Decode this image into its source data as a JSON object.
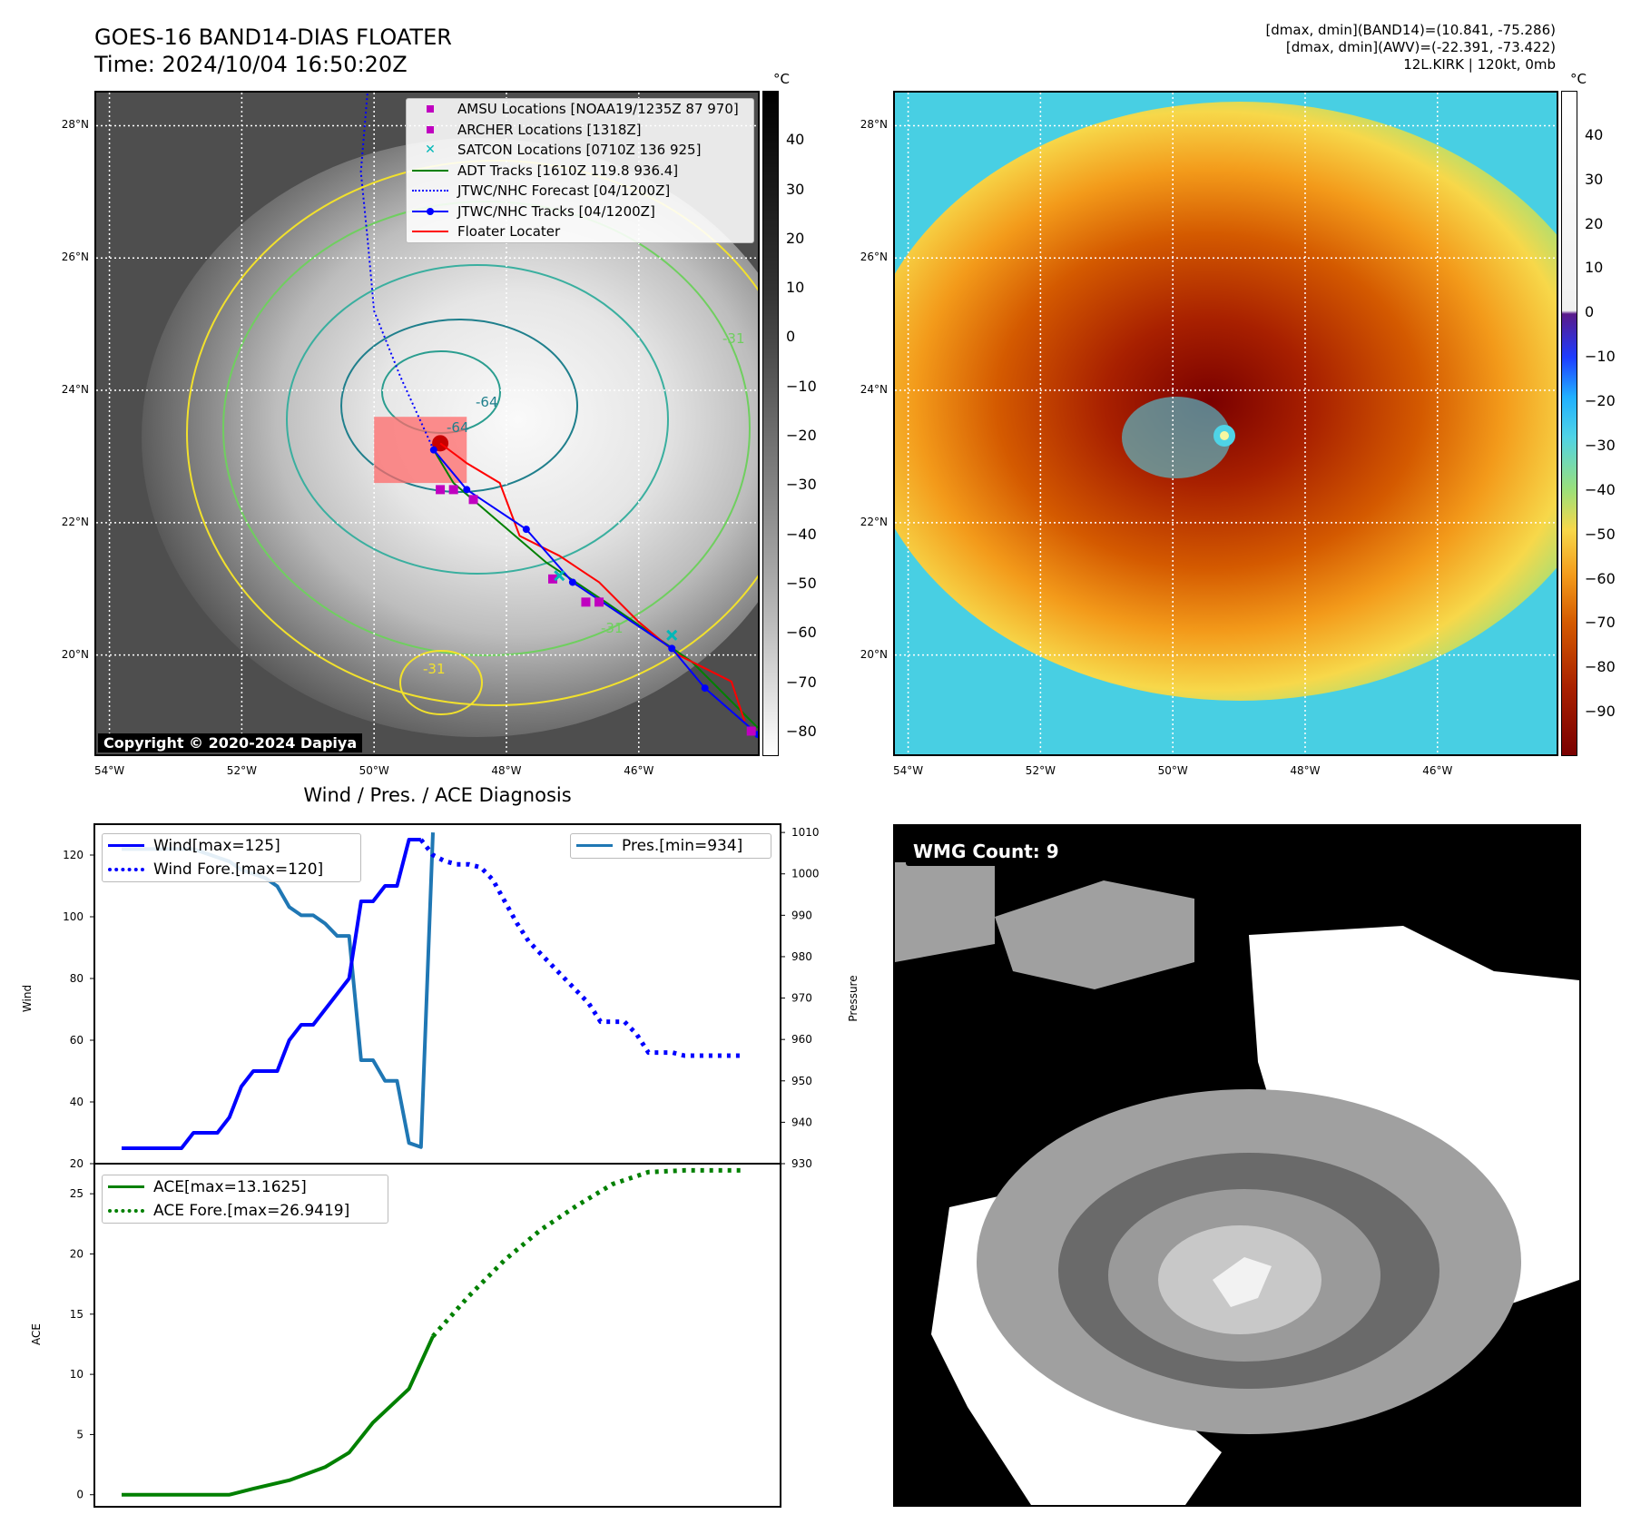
{
  "header": {
    "title": "GOES-16 BAND14-DIAS FLOATER",
    "time": "Time: 2024/10/04 16:50:20Z",
    "info_line1": "[dmax, dmin](BAND14)=(10.841, -75.286)",
    "info_line2": "[dmax, dmin](AWV)=(-22.391, -73.422)",
    "info_line3": "12L.KIRK | 120kt, 0mb"
  },
  "map": {
    "lat_labels": [
      "28°N",
      "26°N",
      "24°N",
      "22°N",
      "20°N"
    ],
    "lat_values": [
      28,
      26,
      24,
      22,
      20
    ],
    "lon_labels": [
      "54°W",
      "52°W",
      "50°W",
      "48°W",
      "46°W"
    ],
    "lon_values": [
      -54,
      -52,
      -50,
      -48,
      -46
    ],
    "extent": {
      "lon_min": -54.2,
      "lon_max": -44.2,
      "lat_min": 18.5,
      "lat_max": 28.5
    },
    "copyright": "Copyright © 2020-2024 Dapiya",
    "contour_labels": [
      "-64",
      "-64",
      "-31",
      "-31",
      "-31"
    ],
    "legend": [
      {
        "label": "AMSU Locations [NOAA19/1235Z 87 970]",
        "color": "#c000c0",
        "style": "square"
      },
      {
        "label": "ARCHER Locations [1318Z]",
        "color": "#c000c0",
        "style": "square"
      },
      {
        "label": "SATCON Locations [0710Z 136 925]",
        "color": "#00b8b8",
        "style": "x"
      },
      {
        "label": "ADT Tracks [1610Z 119.8 936.4]",
        "color": "#008000",
        "style": "line"
      },
      {
        "label": "JTWC/NHC Forecast [04/1200Z]",
        "color": "#0000ff",
        "style": "dotted"
      },
      {
        "label": "JTWC/NHC Tracks [04/1200Z]",
        "color": "#0000ff",
        "style": "line-dot"
      },
      {
        "label": "Floater Locater",
        "color": "#ff0000",
        "style": "line"
      }
    ],
    "jtwc_track": [
      [
        -44.2,
        18.8
      ],
      [
        -45.0,
        19.5
      ],
      [
        -45.5,
        20.1
      ],
      [
        -47.0,
        21.1
      ],
      [
        -47.7,
        21.9
      ],
      [
        -48.6,
        22.5
      ],
      [
        -49.1,
        23.1
      ]
    ],
    "jtwc_forecast": [
      [
        -49.1,
        23.1
      ],
      [
        -49.6,
        24.2
      ],
      [
        -50.0,
        25.2
      ],
      [
        -50.1,
        26.3
      ],
      [
        -50.2,
        27.3
      ],
      [
        -50.1,
        28.5
      ]
    ],
    "adt_track": [
      [
        -44.2,
        18.9
      ],
      [
        -45.2,
        19.9
      ],
      [
        -46.5,
        20.8
      ],
      [
        -47.4,
        21.4
      ],
      [
        -48.1,
        22.0
      ],
      [
        -48.8,
        22.6
      ],
      [
        -49.1,
        23.1
      ]
    ],
    "floater_track": [
      [
        -44.4,
        19.0
      ],
      [
        -44.6,
        19.6
      ],
      [
        -45.4,
        20.0
      ],
      [
        -46.0,
        20.5
      ],
      [
        -46.6,
        21.1
      ],
      [
        -47.2,
        21.5
      ],
      [
        -47.8,
        21.8
      ],
      [
        -48.1,
        22.6
      ],
      [
        -48.6,
        22.9
      ],
      [
        -49.0,
        23.2
      ]
    ],
    "amsu_points": [
      [
        -49.0,
        22.5
      ],
      [
        -48.8,
        22.5
      ],
      [
        -48.5,
        22.35
      ],
      [
        -46.8,
        20.8
      ],
      [
        -46.6,
        20.8
      ],
      [
        -47.3,
        21.15
      ],
      [
        -44.3,
        18.85
      ]
    ],
    "satcon_points": [
      [
        -47.2,
        21.2
      ],
      [
        -45.5,
        20.3
      ]
    ],
    "floater_box": {
      "lon_min": -50.0,
      "lon_max": -48.6,
      "lat_min": 22.6,
      "lat_max": 23.6
    },
    "colorbar_left": {
      "unit": "°C",
      "ticks": [
        "40",
        "30",
        "20",
        "10",
        "0",
        "−10",
        "−20",
        "−30",
        "−40",
        "−50",
        "−60",
        "−70",
        "−80"
      ],
      "tick_values": [
        40,
        30,
        20,
        10,
        0,
        -10,
        -20,
        -30,
        -40,
        -50,
        -60,
        -70,
        -80
      ],
      "range": [
        -85,
        50
      ]
    },
    "colorbar_right": {
      "unit": "°C",
      "ticks": [
        "40",
        "30",
        "20",
        "10",
        "0",
        "−10",
        "−20",
        "−30",
        "−40",
        "−50",
        "−60",
        "−70",
        "−80",
        "−90"
      ],
      "tick_values": [
        40,
        30,
        20,
        10,
        0,
        -10,
        -20,
        -30,
        -40,
        -50,
        -60,
        -70,
        -80,
        -90
      ],
      "range": [
        -100,
        50
      ]
    }
  },
  "diagnosis": {
    "title": "Wind / Pres. / ACE Diagnosis",
    "wind_ylabel": "Wind",
    "pres_ylabel": "Pressure",
    "ace_ylabel": "ACE",
    "legend_wind": "Wind[max=125]",
    "legend_wind_fore": "Wind Fore.[max=120]",
    "legend_pres": "Pres.[min=934]",
    "legend_ace": "ACE[max=13.1625]",
    "legend_ace_fore": "ACE Fore.[max=26.9419]",
    "colors": {
      "wind": "#0000ff",
      "pres": "#1f77b4",
      "ace": "#008000"
    }
  },
  "wmg": {
    "label": "WMG Count: 9"
  },
  "chart_data": [
    {
      "type": "line",
      "title": "Wind / Pres. / ACE Diagnosis",
      "ylabel": "Wind",
      "ylim": [
        20,
        130
      ],
      "yticks": [
        20,
        40,
        60,
        80,
        100,
        120
      ],
      "secondary_ylabel": "Pressure",
      "secondary_ylim": [
        930,
        1012
      ],
      "secondary_yticks": [
        930,
        940,
        950,
        960,
        970,
        980,
        990,
        1000,
        1010
      ],
      "series": [
        {
          "name": "Wind[max=125]",
          "axis": "wind",
          "x": [
            0,
            1,
            2,
            3,
            4,
            5,
            6,
            7,
            8,
            9,
            10,
            11,
            12,
            13,
            14,
            15,
            16,
            17,
            18,
            19,
            20,
            21,
            22,
            23,
            24,
            25
          ],
          "values": [
            25,
            25,
            25,
            25,
            25,
            25,
            30,
            30,
            30,
            35,
            45,
            50,
            50,
            50,
            60,
            65,
            65,
            70,
            75,
            80,
            105,
            105,
            110,
            110,
            125,
            125
          ]
        },
        {
          "name": "Wind Fore.[max=120]",
          "axis": "wind",
          "style": "dotted",
          "x": [
            25,
            26,
            27,
            28,
            29,
            30,
            31,
            32,
            33,
            34,
            35,
            36,
            37,
            38,
            39,
            40,
            41,
            42,
            43,
            44,
            45,
            46,
            47,
            48,
            49,
            50,
            51,
            52
          ],
          "values": [
            125,
            120,
            118,
            117,
            117,
            116,
            112,
            105,
            98,
            92,
            88,
            84,
            80,
            76,
            72,
            66,
            66,
            66,
            62,
            56,
            56,
            56,
            55,
            55,
            55,
            55,
            55,
            55
          ]
        },
        {
          "name": "Pres.[min=934]",
          "axis": "pressure",
          "x": [
            0,
            1,
            2,
            3,
            4,
            5,
            6,
            7,
            8,
            9,
            10,
            11,
            12,
            13,
            14,
            15,
            16,
            17,
            18,
            19,
            20,
            21,
            22,
            23,
            24,
            25,
            26
          ],
          "values": [
            1006,
            1006,
            1006,
            1006,
            1006,
            1006,
            1006,
            1005,
            1004,
            1003,
            1001,
            1000,
            999,
            997,
            992,
            990,
            990,
            988,
            985,
            985,
            955,
            955,
            950,
            950,
            935,
            934,
            1010
          ]
        }
      ]
    },
    {
      "type": "line",
      "ylabel": "ACE",
      "ylim": [
        -1,
        27.5
      ],
      "yticks": [
        0,
        5,
        10,
        15,
        20,
        25
      ],
      "series": [
        {
          "name": "ACE[max=13.1625]",
          "x": [
            0,
            3,
            6,
            9,
            11,
            14,
            17,
            19,
            21,
            24,
            26
          ],
          "values": [
            0,
            0,
            0,
            0,
            0.5,
            1.2,
            2.3,
            3.5,
            6,
            8.8,
            13.1625
          ]
        },
        {
          "name": "ACE Fore.[max=26.9419]",
          "style": "dotted",
          "x": [
            26,
            29,
            32,
            35,
            38,
            41,
            44,
            47,
            50,
            52
          ],
          "values": [
            13.1625,
            16.5,
            19.5,
            22,
            24,
            25.8,
            26.8,
            26.94,
            26.94,
            26.94
          ]
        }
      ]
    }
  ]
}
